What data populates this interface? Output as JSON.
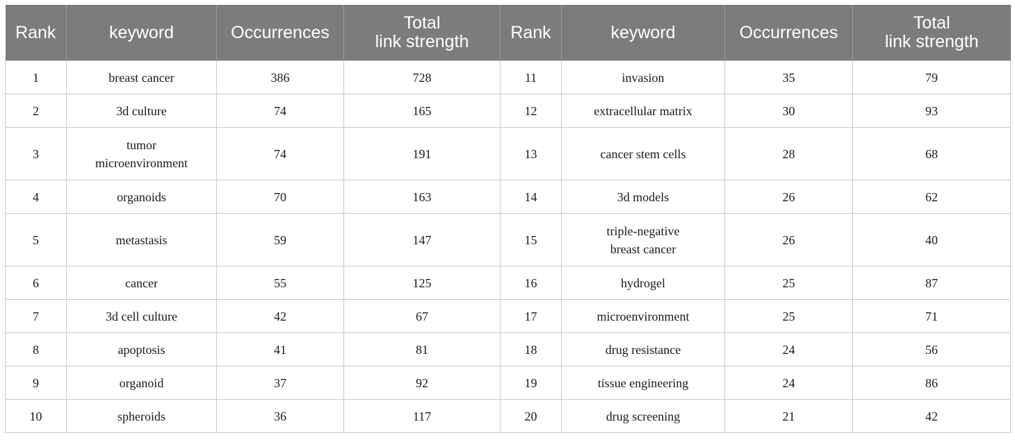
{
  "table": {
    "headers": [
      "Rank",
      "keyword",
      "Occurrences",
      "Total\nlink strength",
      "Rank",
      "keyword",
      "Occurrences",
      "Total\nlink strength"
    ],
    "rows": [
      [
        "1",
        "breast cancer",
        "386",
        "728",
        "11",
        "invasion",
        "35",
        "79"
      ],
      [
        "2",
        "3d culture",
        "74",
        "165",
        "12",
        "extracellular matrix",
        "30",
        "93"
      ],
      [
        "3",
        "tumor\nmicroenvironment",
        "74",
        "191",
        "13",
        "cancer stem cells",
        "28",
        "68"
      ],
      [
        "4",
        "organoids",
        "70",
        "163",
        "14",
        "3d models",
        "26",
        "62"
      ],
      [
        "5",
        "metastasis",
        "59",
        "147",
        "15",
        "triple-negative\nbreast cancer",
        "26",
        "40"
      ],
      [
        "6",
        "cancer",
        "55",
        "125",
        "16",
        "hydrogel",
        "25",
        "87"
      ],
      [
        "7",
        "3d cell culture",
        "42",
        "67",
        "17",
        "microenvironment",
        "25",
        "71"
      ],
      [
        "8",
        "apoptosis",
        "41",
        "81",
        "18",
        "drug resistance",
        "24",
        "56"
      ],
      [
        "9",
        "organoid",
        "37",
        "92",
        "19",
        "tissue engineering",
        "24",
        "86"
      ],
      [
        "10",
        "spheroids",
        "36",
        "117",
        "20",
        "drug screening",
        "21",
        "42"
      ]
    ]
  },
  "colors": {
    "header_bg": "#7b7d7c",
    "header_text": "#ffffff",
    "grid": "#c9c9c9"
  }
}
